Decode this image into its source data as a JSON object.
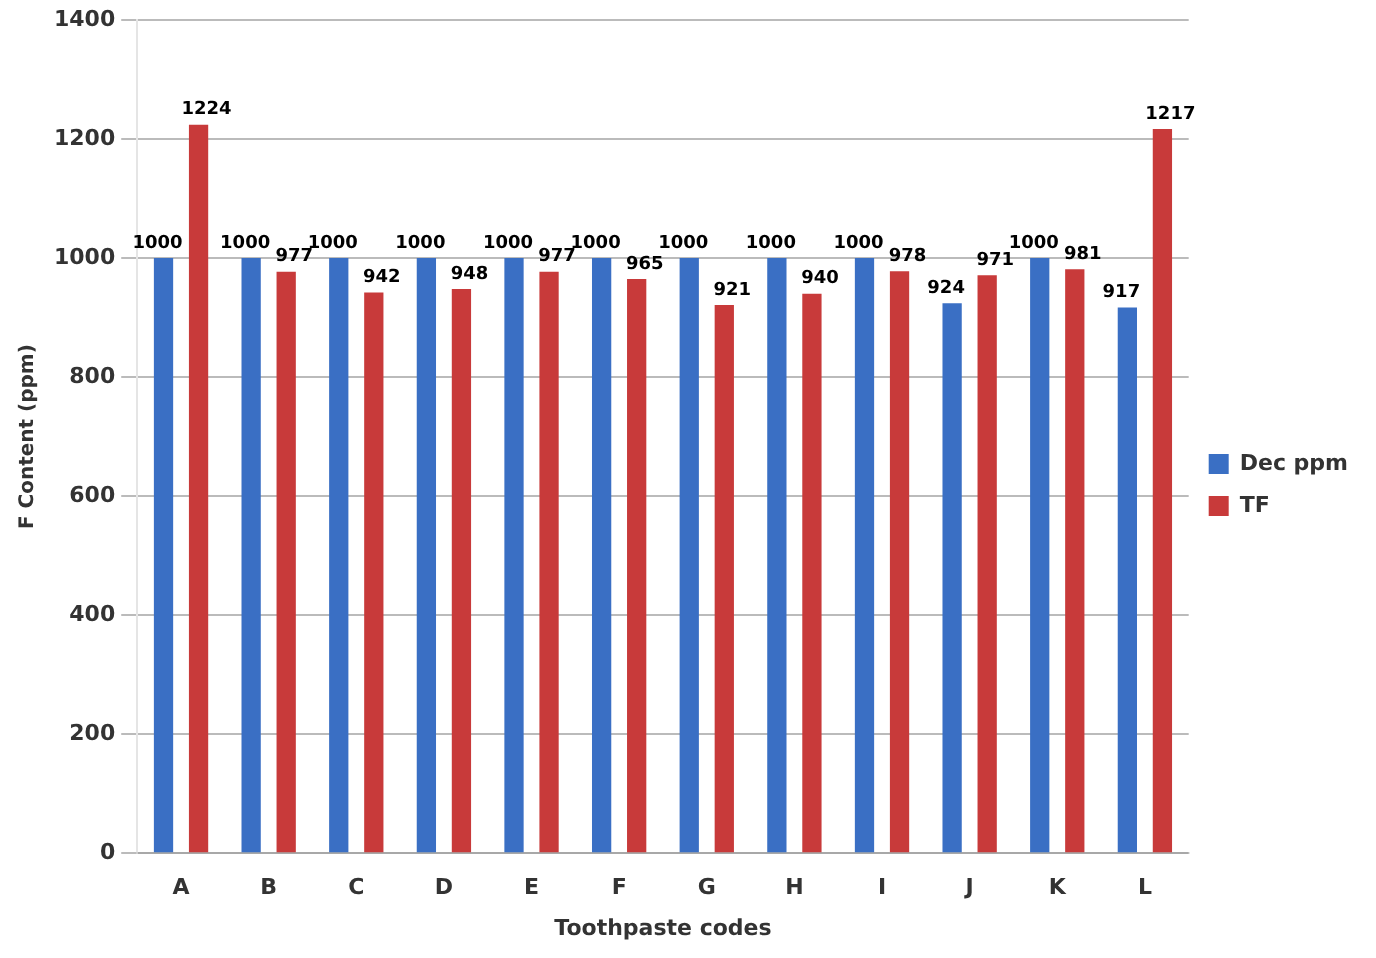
{
  "chart_data": {
    "type": "bar",
    "xlabel": "Toothpaste codes",
    "ylabel": "F Content (ppm)",
    "categories": [
      "A",
      "B",
      "C",
      "D",
      "E",
      "F",
      "G",
      "H",
      "I",
      "J",
      "K",
      "L"
    ],
    "series": [
      {
        "name": "Dec ppm",
        "color": "#3a6fc4",
        "values": [
          1000,
          1000,
          1000,
          1000,
          1000,
          1000,
          1000,
          1000,
          1000,
          924,
          1000,
          917
        ]
      },
      {
        "name": "TF",
        "color": "#c83a3a",
        "values": [
          1224,
          977,
          942,
          948,
          977,
          965,
          921,
          940,
          978,
          971,
          981,
          1217
        ]
      }
    ],
    "ylim": [
      0,
      1400
    ],
    "yticks": [
      0,
      200,
      400,
      600,
      800,
      1000,
      1200,
      1400
    ],
    "grid": "y",
    "legend": "right",
    "data_labels": true
  }
}
